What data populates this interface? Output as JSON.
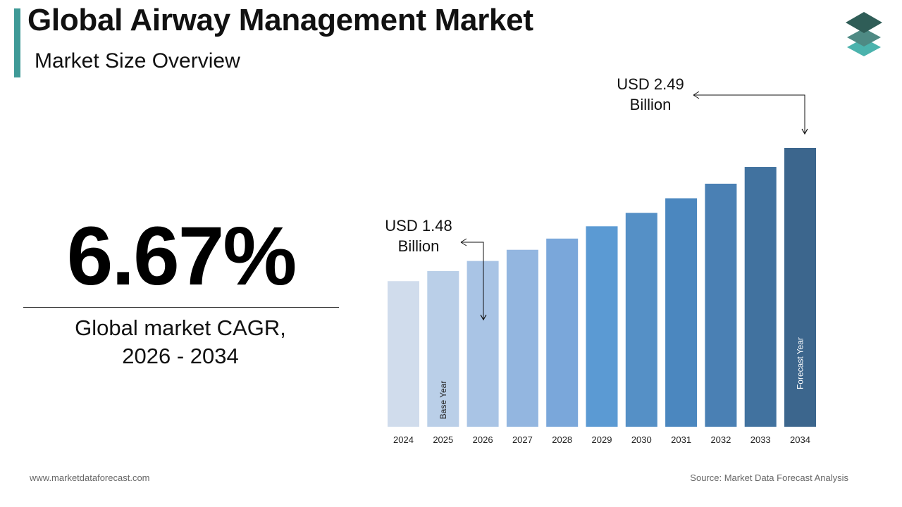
{
  "header": {
    "title": "Global Airway Management Market",
    "subtitle": "Market Size Overview"
  },
  "logo": {
    "icon": "stacked-layers-logo",
    "colors": [
      "#2f5d57",
      "#4e8a84",
      "#4bb3ad"
    ]
  },
  "cagr": {
    "value": "6.67%",
    "caption_line1": "Global market CAGR,",
    "caption_line2": "2026 - 2034"
  },
  "callouts": {
    "start_line1": "USD 1.48",
    "start_line2": "Billion",
    "end_line1": "USD 2.49",
    "end_line2": "Billion"
  },
  "chart_data": {
    "type": "bar",
    "categories": [
      "2024",
      "2025",
      "2026",
      "2027",
      "2028",
      "2029",
      "2030",
      "2031",
      "2032",
      "2033",
      "2034"
    ],
    "values": [
      1.3,
      1.39,
      1.48,
      1.58,
      1.68,
      1.79,
      1.91,
      2.04,
      2.17,
      2.32,
      2.49
    ],
    "bar_colors": [
      "#d0dcec",
      "#bacfe8",
      "#a9c4e5",
      "#93b6e0",
      "#7aa7da",
      "#5b9ad3",
      "#5590c6",
      "#4b87bf",
      "#4a80b4",
      "#41729f",
      "#3c668d"
    ],
    "bar_annotations": {
      "2025": "Base Year",
      "2034": "Forecast Year"
    },
    "ylim": [
      0,
      2.49
    ],
    "grid": false
  },
  "footer": {
    "website": "www.marketdataforecast.com",
    "source": "Source: Market Data Forecast Analysis"
  }
}
